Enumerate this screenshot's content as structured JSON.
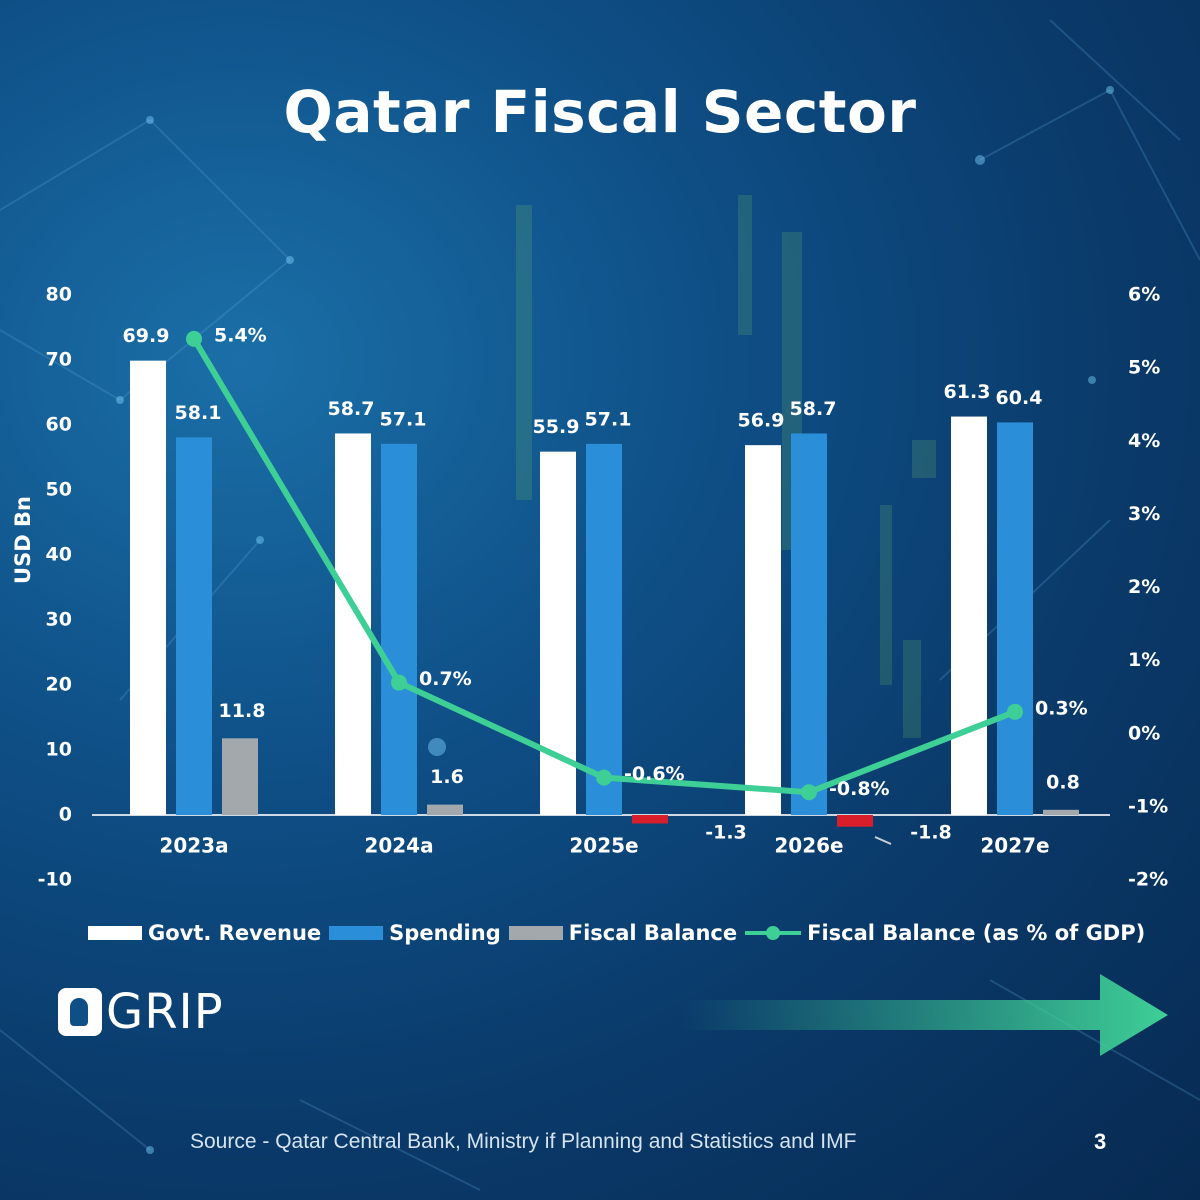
{
  "page": {
    "title": "Qatar Fiscal Sector",
    "source": "Source - Qatar Central Bank, Ministry if Planning and Statistics and IMF",
    "page_number": "3",
    "brand": "GRIP"
  },
  "colors": {
    "revenue": "#ffffff",
    "spending": "#2a8fd8",
    "balance_positive": "#a3a8ad",
    "balance_negative": "#d81e2a",
    "line": "#3ecf96",
    "text": "#ffffff"
  },
  "chart_data": {
    "type": "bar",
    "title": "Qatar Fiscal Sector",
    "categories": [
      "2023a",
      "2024a",
      "2025e",
      "2026e",
      "2027e"
    ],
    "ylabel": "USD Bn",
    "ylim": [
      -10,
      80
    ],
    "yticks": [
      "80",
      "70",
      "60",
      "50",
      "40",
      "30",
      "20",
      "10",
      "0",
      "-10"
    ],
    "ylim_right": [
      -2,
      6
    ],
    "yticks_right": [
      "6%",
      "5%",
      "4%",
      "3%",
      "2%",
      "1%",
      "0%",
      "-1%",
      "-2%"
    ],
    "series": [
      {
        "name": "Govt. Revenue",
        "type": "bar",
        "values": [
          69.9,
          58.7,
          55.9,
          56.9,
          61.3
        ],
        "labels": [
          "69.9",
          "58.7",
          "55.9",
          "56.9",
          "61.3"
        ]
      },
      {
        "name": "Spending",
        "type": "bar",
        "values": [
          58.1,
          57.1,
          57.1,
          58.7,
          60.4
        ],
        "labels": [
          "58.1",
          "57.1",
          "57.1",
          "58.7",
          "60.4"
        ]
      },
      {
        "name": "Fiscal Balance",
        "type": "bar",
        "values": [
          11.8,
          1.6,
          -1.3,
          -1.8,
          0.8
        ],
        "labels": [
          "11.8",
          "1.6",
          "-1.3",
          "-1.8",
          "0.8"
        ]
      },
      {
        "name": "Fiscal Balance (as % of GDP)",
        "type": "line",
        "axis": "right",
        "values": [
          5.4,
          0.7,
          -0.6,
          -0.8,
          0.3
        ],
        "labels": [
          "5.4%",
          "0.7%",
          "-0.6%",
          "-0.8%",
          "0.3%"
        ]
      }
    ],
    "legend": "bottom"
  }
}
